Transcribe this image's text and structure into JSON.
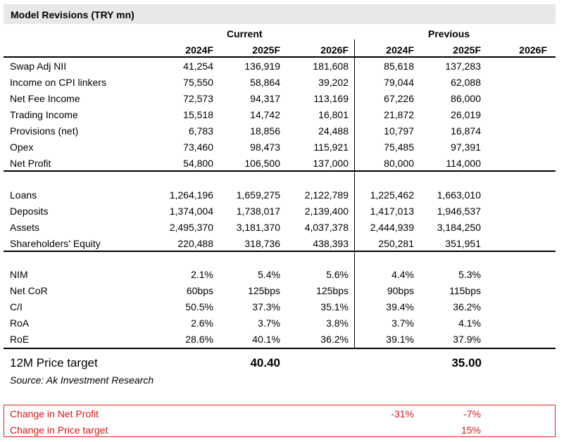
{
  "title": "Model Revisions (TRY  mn)",
  "groups": {
    "current": "Current",
    "previous": "Previous"
  },
  "years": [
    "2024F",
    "2025F",
    "2026F",
    "2024F",
    "2025F",
    "2026F"
  ],
  "section1": [
    {
      "label": "Swap Adj NII",
      "values": [
        "41,254",
        "136,919",
        "181,608",
        "85,618",
        "137,283"
      ]
    },
    {
      "label": "Income on CPI linkers",
      "values": [
        "75,550",
        "58,864",
        "39,202",
        "79,044",
        "62,088"
      ]
    },
    {
      "label": "Net Fee Income",
      "values": [
        "72,573",
        "94,317",
        "113,169",
        "67,226",
        "86,000"
      ]
    },
    {
      "label": "Trading Income",
      "values": [
        "15,518",
        "14,742",
        "16,801",
        "21,872",
        "26,019"
      ]
    },
    {
      "label": "Provisions (net)",
      "values": [
        "6,783",
        "18,856",
        "24,488",
        "10,797",
        "16,874"
      ]
    },
    {
      "label": "Opex",
      "values": [
        "73,460",
        "98,473",
        "115,921",
        "75,485",
        "97,391"
      ]
    },
    {
      "label": "Net Profit",
      "values": [
        "54,800",
        "106,500",
        "137,000",
        "80,000",
        "114,000"
      ]
    }
  ],
  "section2": [
    {
      "label": "Loans",
      "values": [
        "1,264,196",
        "1,659,275",
        "2,122,789",
        "1,225,462",
        "1,663,010"
      ]
    },
    {
      "label": "Deposits",
      "values": [
        "1,374,004",
        "1,738,017",
        "2,139,400",
        "1,417,013",
        "1,946,537"
      ]
    },
    {
      "label": "Assets",
      "values": [
        "2,495,370",
        "3,181,370",
        "4,037,378",
        "2,444,939",
        "3,184,250"
      ]
    },
    {
      "label": "Shareholders' Equity",
      "values": [
        "220,488",
        "318,736",
        "438,393",
        "250,281",
        "351,951"
      ]
    }
  ],
  "section3": [
    {
      "label": "NIM",
      "values": [
        "2.1%",
        "5.4%",
        "5.6%",
        "4.4%",
        "5.3%"
      ]
    },
    {
      "label": "Net CoR",
      "values": [
        "60bps",
        "125bps",
        "125bps",
        "90bps",
        "115bps"
      ]
    },
    {
      "label": "C/I",
      "values": [
        "50.5%",
        "37.3%",
        "35.1%",
        "39.4%",
        "36.2%"
      ]
    },
    {
      "label": "RoA",
      "values": [
        "2.6%",
        "3.7%",
        "3.8%",
        "3.7%",
        "4.1%"
      ]
    },
    {
      "label": "RoE",
      "values": [
        "28.6%",
        "40.1%",
        "36.2%",
        "39.1%",
        "37.9%"
      ]
    }
  ],
  "price_target": {
    "label": "12M Price target",
    "current": "40.40",
    "previous": "35.00"
  },
  "source": "Source: Ak Investment Research",
  "changes": [
    {
      "label": "Change in Net Profit",
      "v2024": "-31%",
      "v2025": "-7%"
    },
    {
      "label": "Change in Price target",
      "v2024": "",
      "v2025": "15%"
    }
  ],
  "colors": {
    "title_bg": "#e8e8e8",
    "change_red": "#d01818"
  }
}
